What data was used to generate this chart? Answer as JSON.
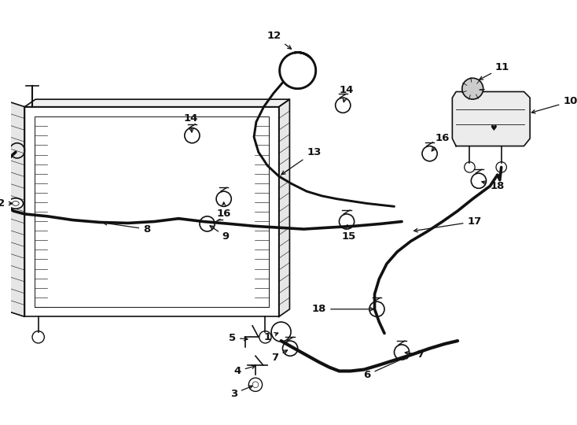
{
  "bg_color": "#ffffff",
  "line_color": "#111111",
  "fig_width": 7.34,
  "fig_height": 5.4,
  "dpi": 100
}
